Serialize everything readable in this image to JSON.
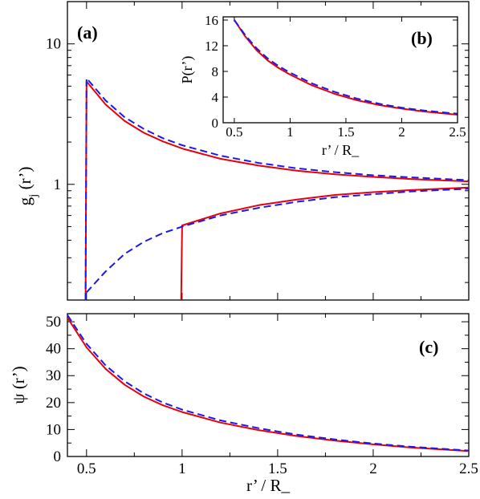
{
  "colors": {
    "solid": "#e8000b",
    "dashed": "#1a1ae6"
  },
  "chart_data": [
    {
      "panel": "(a)",
      "type": "line",
      "ylabel_main": "g",
      "ylabel_sub": "j",
      "ylabel_arg": " (r’)",
      "yscale": "log",
      "xlim": [
        0.4,
        2.5
      ],
      "ylim": [
        0.15,
        20
      ],
      "x_ticks": [
        0.5,
        1,
        1.5,
        2,
        2.5
      ],
      "y_ticks": [
        1,
        10
      ],
      "y_tick_labels": [
        "1",
        "10"
      ],
      "series": [
        {
          "style": "solid",
          "color": "#e8000b",
          "x": [
            0.495,
            0.5,
            0.6,
            0.7,
            0.8,
            0.9,
            1.0,
            1.2,
            1.4,
            1.6,
            1.8,
            2.0,
            2.2,
            2.5
          ],
          "y": [
            0.15,
            5.4,
            3.7,
            2.82,
            2.33,
            2.02,
            1.8,
            1.52,
            1.36,
            1.25,
            1.18,
            1.13,
            1.09,
            1.05
          ]
        },
        {
          "style": "dashed",
          "color": "#1a1ae6",
          "x": [
            0.495,
            0.5,
            0.6,
            0.7,
            0.8,
            0.9,
            1.0,
            1.2,
            1.4,
            1.6,
            1.8,
            2.0,
            2.2,
            2.5
          ],
          "y": [
            0.15,
            5.7,
            3.95,
            3.0,
            2.48,
            2.13,
            1.9,
            1.6,
            1.42,
            1.3,
            1.22,
            1.16,
            1.12,
            1.07
          ]
        },
        {
          "style": "solid",
          "color": "#e8000b",
          "x": [
            0.995,
            1.0,
            1.2,
            1.4,
            1.6,
            1.8,
            2.0,
            2.2,
            2.5
          ],
          "y": [
            0.15,
            0.51,
            0.62,
            0.71,
            0.78,
            0.84,
            0.88,
            0.91,
            0.95
          ]
        },
        {
          "style": "dashed",
          "color": "#1a1ae6",
          "x": [
            0.5,
            0.6,
            0.7,
            0.8,
            0.9,
            1.0,
            1.2,
            1.4,
            1.6,
            1.8,
            2.0,
            2.2,
            2.5
          ],
          "y": [
            0.17,
            0.24,
            0.32,
            0.39,
            0.45,
            0.5,
            0.6,
            0.68,
            0.75,
            0.81,
            0.85,
            0.89,
            0.93
          ]
        }
      ]
    },
    {
      "panel": "(b)",
      "type": "line",
      "xlabel": "r’ / R_",
      "ylabel": "P(r’)",
      "xlim": [
        0.4,
        2.5
      ],
      "ylim": [
        0,
        16.5
      ],
      "x_ticks": [
        0.5,
        1,
        1.5,
        2,
        2.5
      ],
      "x_tick_labels": [
        "0.5",
        "1",
        "1.5",
        "2",
        "2.5"
      ],
      "y_ticks": [
        0,
        4,
        8,
        12,
        16
      ],
      "series": [
        {
          "style": "solid",
          "color": "#e8000b",
          "x": [
            0.5,
            0.6,
            0.7,
            0.8,
            0.9,
            1.0,
            1.2,
            1.4,
            1.6,
            1.8,
            2.0,
            2.2,
            2.5
          ],
          "y": [
            16.0,
            13.4,
            11.3,
            9.7,
            8.5,
            7.5,
            5.8,
            4.5,
            3.5,
            2.75,
            2.2,
            1.75,
            1.25
          ]
        },
        {
          "style": "dashed",
          "color": "#1a1ae6",
          "x": [
            0.5,
            0.6,
            0.7,
            0.8,
            0.9,
            1.0,
            1.2,
            1.4,
            1.6,
            1.8,
            2.0,
            2.2,
            2.5
          ],
          "y": [
            16.0,
            13.6,
            11.6,
            10.0,
            8.8,
            7.8,
            6.1,
            4.8,
            3.75,
            2.95,
            2.35,
            1.9,
            1.4
          ]
        }
      ]
    },
    {
      "panel": "(c)",
      "type": "line",
      "xlabel": "r’ / R_",
      "ylabel": "ψ (r’)",
      "xlim": [
        0.4,
        2.5
      ],
      "ylim": [
        0,
        53
      ],
      "x_ticks": [
        0.5,
        1,
        1.5,
        2,
        2.5
      ],
      "x_tick_labels": [
        "0.5",
        "1",
        "1.5",
        "2",
        "2.5"
      ],
      "y_ticks": [
        0,
        10,
        20,
        30,
        40,
        50
      ],
      "series": [
        {
          "style": "solid",
          "color": "#e8000b",
          "x": [
            0.4,
            0.5,
            0.6,
            0.7,
            0.8,
            0.9,
            1.0,
            1.2,
            1.4,
            1.6,
            1.8,
            2.0,
            2.2,
            2.5
          ],
          "y": [
            51.5,
            40.5,
            32.5,
            26.6,
            22.2,
            19.0,
            16.5,
            12.6,
            9.8,
            7.6,
            5.9,
            4.5,
            3.3,
            2.0
          ]
        },
        {
          "style": "dashed",
          "color": "#1a1ae6",
          "x": [
            0.4,
            0.5,
            0.6,
            0.7,
            0.8,
            0.9,
            1.0,
            1.2,
            1.4,
            1.6,
            1.8,
            2.0,
            2.2,
            2.5
          ],
          "y": [
            52.5,
            41.8,
            33.8,
            27.9,
            23.4,
            20.0,
            17.4,
            13.4,
            10.5,
            8.1,
            6.3,
            4.8,
            3.6,
            2.2
          ]
        }
      ]
    }
  ]
}
